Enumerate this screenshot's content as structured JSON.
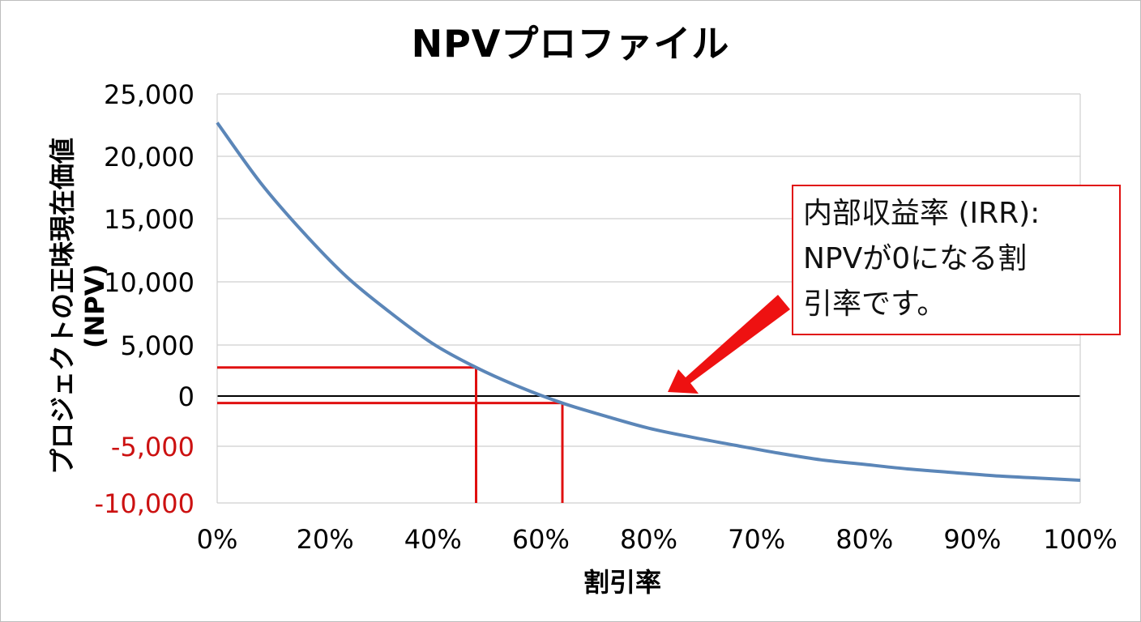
{
  "chart_data": {
    "type": "line",
    "title": "NPVプロファイル",
    "xlabel": "割引率",
    "ylabel": [
      "プロジェクトの正味現在価値",
      "(NPV)"
    ],
    "x_tick_labels": [
      "0%",
      "20%",
      "40%",
      "60%",
      "80%",
      "70%",
      "80%",
      "90%",
      "100%"
    ],
    "y_ticks": [
      25000,
      20000,
      15000,
      10000,
      5000,
      0,
      -5000,
      -10000
    ],
    "y_tick_labels": [
      "25,000",
      "20,000",
      "15,000",
      "10,000",
      "5,000",
      "0",
      "-5,000",
      "-10,000"
    ],
    "ylim": [
      -10000,
      25000
    ],
    "grid": true,
    "series": [
      {
        "color": "#5b86b8",
        "x": [
          0,
          0.05,
          0.1,
          0.15,
          0.2,
          0.25,
          0.3,
          0.35,
          0.4,
          0.45,
          0.5,
          0.55,
          0.6,
          0.65,
          0.7,
          0.75,
          0.8,
          0.85,
          0.9,
          0.95,
          1.0
        ],
        "y": [
          22700,
          17900,
          13900,
          10400,
          7600,
          5100,
          2800,
          900,
          -700,
          -2000,
          -3200,
          -4100,
          -4900,
          -5600,
          -6200,
          -6600,
          -7000,
          -7300,
          -7600,
          -7800,
          -8000
        ]
      }
    ],
    "markers": [
      {
        "color": "#e01010",
        "x": 0.3,
        "y": 2800
      },
      {
        "color": "#e01010",
        "x": 0.4,
        "y": -700
      }
    ],
    "annotation": {
      "lines": [
        "内部収益率 (IRR):",
        "NPVが0になる割",
        "引率です。"
      ],
      "border_color": "#e01010",
      "arrow_color": "#ee1111"
    },
    "axis_colors": {
      "positive": "#000000",
      "negative": "#cc1111"
    }
  }
}
